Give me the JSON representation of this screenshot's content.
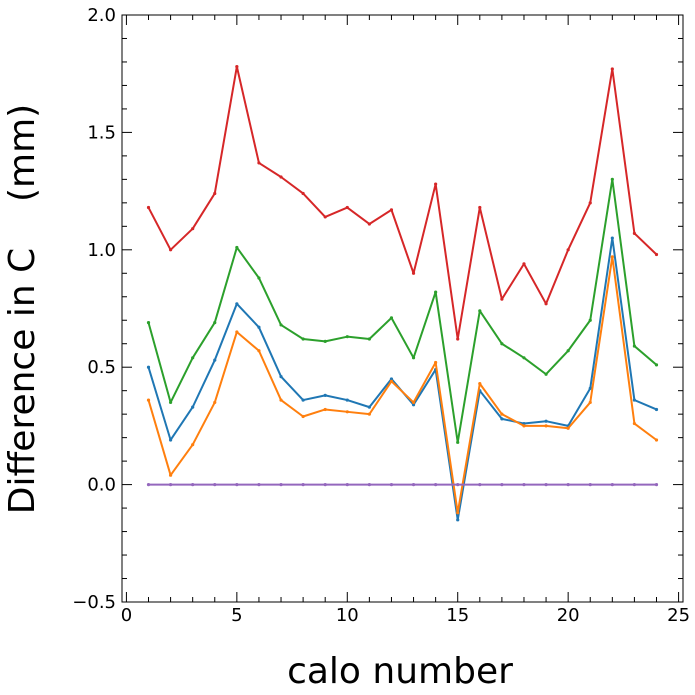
{
  "chart_data": {
    "type": "line",
    "title": "",
    "xlabel": "calo number",
    "ylabel": "Difference in C    (mm)",
    "xlim": [
      -0.2,
      25.2
    ],
    "ylim": [
      -0.5,
      2.0
    ],
    "x_ticks": [
      0,
      5,
      10,
      15,
      20,
      25
    ],
    "x_tick_labels": [
      "0",
      "5",
      "10",
      "15",
      "20",
      "25"
    ],
    "y_ticks": [
      -0.5,
      0.0,
      0.5,
      1.0,
      1.5,
      2.0
    ],
    "y_tick_labels": [
      "−0.5",
      "0.0",
      "0.5",
      "1.0",
      "1.5",
      "2.0"
    ],
    "grid": false,
    "legend": "none",
    "x": [
      1,
      2,
      3,
      4,
      5,
      6,
      7,
      8,
      9,
      10,
      11,
      12,
      13,
      14,
      15,
      16,
      17,
      18,
      19,
      20,
      21,
      22,
      23,
      24
    ],
    "series": [
      {
        "color": "#1f77b4",
        "values": [
          0.5,
          0.19,
          0.33,
          0.53,
          0.77,
          0.67,
          0.46,
          0.36,
          0.38,
          0.36,
          0.33,
          0.45,
          0.34,
          0.49,
          -0.15,
          0.4,
          0.28,
          0.26,
          0.27,
          0.25,
          0.41,
          1.05,
          0.36,
          0.32
        ]
      },
      {
        "color": "#ff7f0e",
        "values": [
          0.36,
          0.04,
          0.17,
          0.35,
          0.65,
          0.57,
          0.36,
          0.29,
          0.32,
          0.31,
          0.3,
          0.44,
          0.35,
          0.52,
          -0.12,
          0.43,
          0.3,
          0.25,
          0.25,
          0.24,
          0.35,
          0.97,
          0.26,
          0.19
        ]
      },
      {
        "color": "#2ca02c",
        "values": [
          0.69,
          0.35,
          0.54,
          0.69,
          1.01,
          0.88,
          0.68,
          0.62,
          0.61,
          0.63,
          0.62,
          0.71,
          0.54,
          0.82,
          0.18,
          0.74,
          0.6,
          0.54,
          0.47,
          0.57,
          0.7,
          1.3,
          0.59,
          0.51
        ]
      },
      {
        "color": "#d62728",
        "values": [
          1.18,
          1.0,
          1.09,
          1.24,
          1.78,
          1.37,
          1.31,
          1.24,
          1.14,
          1.18,
          1.11,
          1.17,
          0.9,
          1.28,
          0.62,
          1.18,
          0.79,
          0.94,
          0.77,
          1.0,
          1.2,
          1.77,
          1.07,
          0.98
        ]
      },
      {
        "color": "#9467bd",
        "values": [
          0,
          0,
          0,
          0,
          0,
          0,
          0,
          0,
          0,
          0,
          0,
          0,
          0,
          0,
          0,
          0,
          0,
          0,
          0,
          0,
          0,
          0,
          0,
          0
        ]
      }
    ]
  }
}
